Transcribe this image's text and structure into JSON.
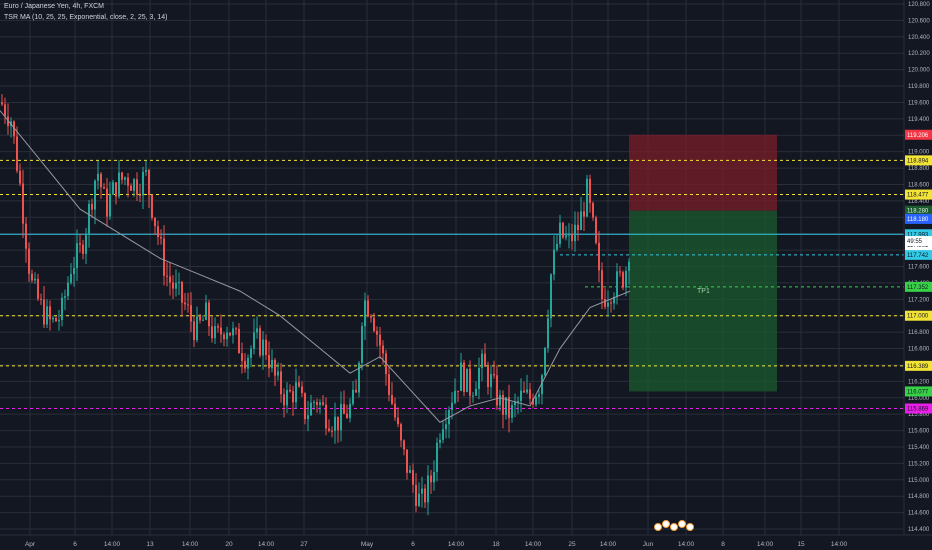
{
  "header": {
    "title": "Euro / Japanese Yen, 4h, FXCM",
    "indicator": "TSR MA (10, 25, 25, Exponential, close, 2, 25, 3, 14)"
  },
  "colors": {
    "background": "#131722",
    "grid": "#2a2e39",
    "up": "#26a69a",
    "down": "#ef5350",
    "ma": "#9598a1",
    "level_yellow": "#f2e335",
    "level_magenta": "#e91ee8",
    "level_cyan": "#32c8e6",
    "level_green": "#37d147",
    "stop_zone": "#7a1f2a",
    "target_zone": "#1b5b2d"
  },
  "chart_data": {
    "type": "candlestick",
    "symbol": "EURJPY",
    "interval": "4h",
    "ylim": [
      114.4,
      120.8
    ],
    "y_ticks": [
      "120.800",
      "120.600",
      "120.400",
      "120.200",
      "120.000",
      "119.800",
      "119.600",
      "119.400",
      "119.200",
      "119.000",
      "118.800",
      "118.600",
      "118.400",
      "118.200",
      "118.000",
      "117.800",
      "117.600",
      "117.400",
      "117.200",
      "117.000",
      "116.800",
      "116.600",
      "116.400",
      "116.200",
      "116.000",
      "115.800",
      "115.600",
      "115.400",
      "115.200",
      "115.000",
      "114.800",
      "114.600",
      "114.400"
    ],
    "x_ticks": [
      "Apr",
      "6",
      "14:00",
      "13",
      "14:00",
      "20",
      "14:00",
      "27",
      "May",
      "6",
      "14:00",
      "18",
      "14:00",
      "25",
      "14:00",
      "Jun",
      "14:00",
      "8",
      "14:00",
      "15",
      "14:00"
    ],
    "price_path": [
      [
        0,
        119.6
      ],
      [
        10,
        119.4
      ],
      [
        20,
        118.5
      ],
      [
        30,
        117.4
      ],
      [
        40,
        117.1
      ],
      [
        50,
        116.9
      ],
      [
        60,
        117.0
      ],
      [
        70,
        117.6
      ],
      [
        80,
        117.8
      ],
      [
        90,
        118.4
      ],
      [
        96,
        118.8
      ],
      [
        105,
        118.3
      ],
      [
        115,
        118.6
      ],
      [
        125,
        118.7
      ],
      [
        135,
        118.6
      ],
      [
        145,
        118.7
      ],
      [
        155,
        118.1
      ],
      [
        165,
        117.5
      ],
      [
        175,
        117.3
      ],
      [
        185,
        117.1
      ],
      [
        195,
        116.8
      ],
      [
        205,
        117.0
      ],
      [
        215,
        116.7
      ],
      [
        225,
        116.9
      ],
      [
        235,
        116.7
      ],
      [
        245,
        116.5
      ],
      [
        255,
        116.7
      ],
      [
        265,
        116.6
      ],
      [
        275,
        116.2
      ],
      [
        285,
        116.0
      ],
      [
        295,
        116.1
      ],
      [
        305,
        115.8
      ],
      [
        315,
        116.0
      ],
      [
        325,
        115.8
      ],
      [
        335,
        115.7
      ],
      [
        345,
        115.8
      ],
      [
        355,
        116.0
      ],
      [
        362,
        117.2
      ],
      [
        370,
        117.1
      ],
      [
        380,
        116.6
      ],
      [
        390,
        116.0
      ],
      [
        400,
        115.4
      ],
      [
        410,
        115.0
      ],
      [
        420,
        114.7
      ],
      [
        430,
        115.0
      ],
      [
        440,
        115.7
      ],
      [
        450,
        116.0
      ],
      [
        460,
        116.3
      ],
      [
        470,
        116.1
      ],
      [
        480,
        116.4
      ],
      [
        490,
        116.2
      ],
      [
        500,
        115.9
      ],
      [
        510,
        115.8
      ],
      [
        520,
        116.0
      ],
      [
        530,
        116.0
      ],
      [
        540,
        116.2
      ],
      [
        550,
        117.5
      ],
      [
        558,
        118.0
      ],
      [
        568,
        117.9
      ],
      [
        578,
        118.1
      ],
      [
        586,
        118.5
      ],
      [
        594,
        117.9
      ],
      [
        600,
        117.2
      ],
      [
        608,
        117.3
      ],
      [
        616,
        117.4
      ],
      [
        624,
        117.5
      ],
      [
        630,
        118.0
      ]
    ],
    "moving_average": [
      [
        0,
        119.5
      ],
      [
        40,
        118.9
      ],
      [
        80,
        118.3
      ],
      [
        120,
        118.0
      ],
      [
        160,
        117.7
      ],
      [
        200,
        117.5
      ],
      [
        240,
        117.3
      ],
      [
        280,
        117.0
      ],
      [
        320,
        116.6
      ],
      [
        350,
        116.3
      ],
      [
        380,
        116.5
      ],
      [
        410,
        116.1
      ],
      [
        440,
        115.7
      ],
      [
        470,
        115.9
      ],
      [
        500,
        116.0
      ],
      [
        530,
        115.9
      ],
      [
        560,
        116.6
      ],
      [
        590,
        117.1
      ],
      [
        630,
        117.3
      ]
    ],
    "levels": [
      {
        "price": 118.894,
        "label": "118.894",
        "color": "yellow",
        "style": "dashed"
      },
      {
        "price": 118.477,
        "label": "118.477",
        "color": "yellow",
        "style": "dashed"
      },
      {
        "price": 117.0,
        "label": "117.000",
        "color": "yellow",
        "style": "dashed"
      },
      {
        "price": 116.389,
        "label": "116.389",
        "color": "yellow",
        "style": "dashed"
      },
      {
        "price": 115.869,
        "label": "115.869",
        "color": "magenta",
        "style": "dashed"
      },
      {
        "price": 117.993,
        "label": "117.993",
        "color": "cyan",
        "style": "solid"
      },
      {
        "price": 117.742,
        "label": "117.742",
        "color": "cyan",
        "style": "dashed"
      },
      {
        "price": 117.352,
        "label": "117.352",
        "color": "green",
        "style": "dashed"
      }
    ],
    "price_badges": [
      {
        "price": 119.206,
        "label": "119.206",
        "bg": "#f23645",
        "fg": "#ffffff"
      },
      {
        "price": 118.28,
        "label": "118.280",
        "bg": "#1b5b2d",
        "fg": "#e0f2e6"
      },
      {
        "price": 118.18,
        "label": "118.180",
        "bg": "#2962ff",
        "fg": "#ffffff"
      },
      {
        "price": 117.861,
        "label": "117.861",
        "bg": "#ffffff",
        "fg": "#131722"
      },
      {
        "price": 117.91,
        "label": "49:55",
        "bg": "#ffffff",
        "fg": "#131722"
      },
      {
        "price": 116.077,
        "label": "116.077",
        "bg": "#37d147",
        "fg": "#131722"
      }
    ],
    "position": {
      "type": "short",
      "entry": 118.28,
      "stop": 119.206,
      "target": 116.077,
      "target_label": "TP1"
    }
  }
}
